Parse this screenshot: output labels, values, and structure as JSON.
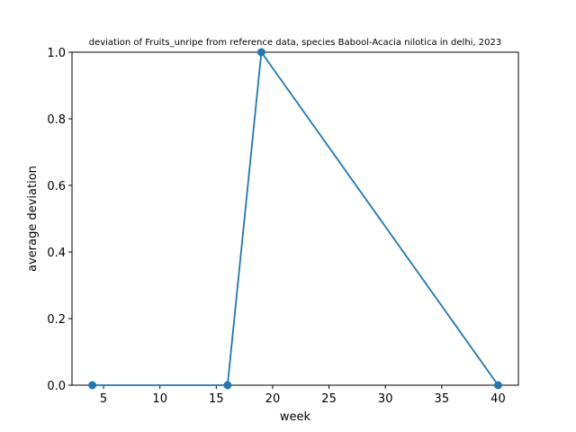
{
  "chart_data": {
    "type": "line",
    "title": "deviation of Fruits_unripe from reference data, species Babool-Acacia nilotica in delhi, 2023",
    "xlabel": "week",
    "ylabel": "average deviation",
    "xlim": [
      2.2,
      41.8
    ],
    "ylim": [
      0,
      1.0
    ],
    "xticks": [
      5,
      10,
      15,
      20,
      25,
      30,
      35,
      40
    ],
    "yticks": [
      0.0,
      0.2,
      0.4,
      0.6,
      0.8,
      1.0
    ],
    "ytick_labels": [
      "0.0",
      "0.2",
      "0.4",
      "0.6",
      "0.8",
      "1.0"
    ],
    "grid": false,
    "series": [
      {
        "x": [
          4,
          16,
          19,
          40
        ],
        "y": [
          0,
          0,
          1.0,
          0
        ],
        "color": "#1f77b4",
        "marker": "circle"
      }
    ]
  }
}
